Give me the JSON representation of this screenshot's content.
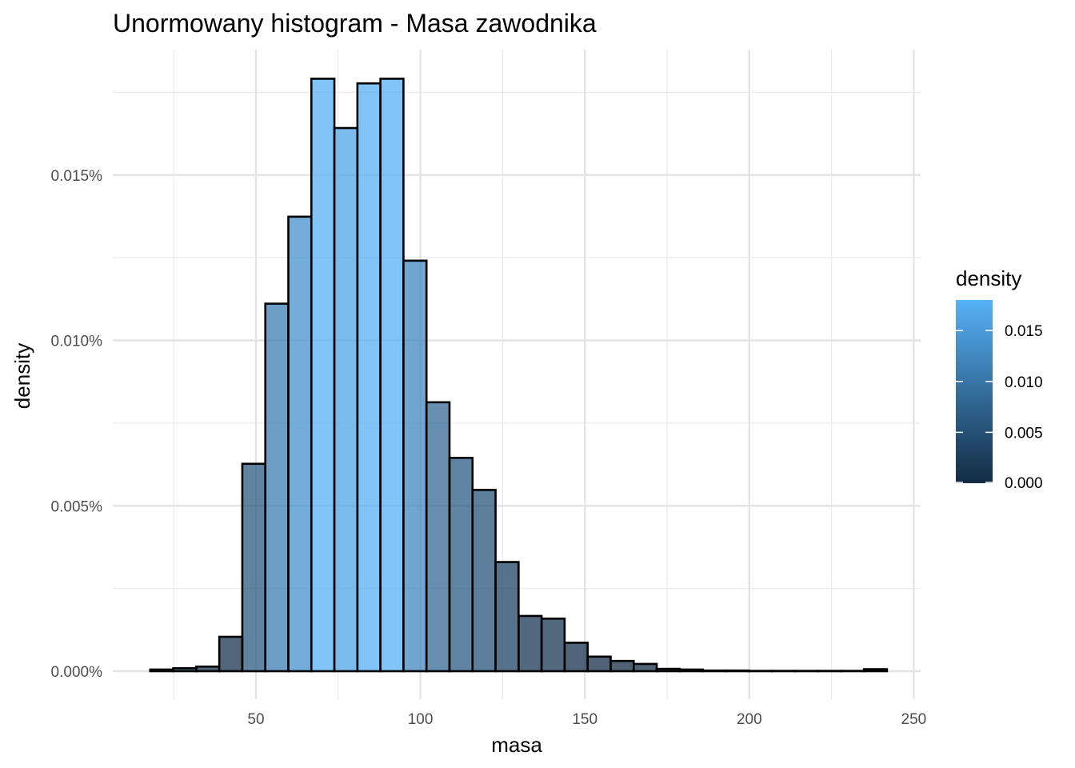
{
  "chart_data": {
    "type": "bar",
    "subtype": "histogram",
    "title": "Unormowany histogram - Masa zawodnika",
    "xlabel": "masa",
    "ylabel": "density",
    "xlim": [
      18,
      242
    ],
    "ylim": [
      0,
      0.018
    ],
    "x_ticks": [
      50,
      100,
      150,
      200,
      250
    ],
    "x_tick_labels": [
      "50",
      "100",
      "150",
      "200",
      "250"
    ],
    "y_ticks": [
      0,
      0.005,
      0.01,
      0.015
    ],
    "y_tick_labels": [
      "0.000%",
      "0.005%",
      "0.010%",
      "0.015%"
    ],
    "grid": true,
    "bin_edges": [
      17.85,
      24.85,
      31.85,
      38.85,
      45.85,
      52.85,
      59.85,
      66.85,
      73.85,
      80.85,
      87.85,
      94.85,
      101.85,
      108.85,
      115.85,
      122.85,
      129.85,
      136.85,
      143.85,
      150.85,
      157.85,
      164.85,
      171.85,
      178.85,
      185.85,
      192.85,
      199.85,
      206.85,
      213.85,
      220.85,
      227.85,
      234.85,
      241.85
    ],
    "values": [
      5e-05,
      9e-05,
      0.00014,
      0.00104,
      0.00627,
      0.01111,
      0.01374,
      0.01791,
      0.01642,
      0.01777,
      0.01791,
      0.01241,
      0.00813,
      0.00645,
      0.00548,
      0.0033,
      0.00167,
      0.00159,
      0.00086,
      0.00044,
      0.00031,
      0.00022,
      7e-05,
      5e-05,
      2e-05,
      2e-05,
      1e-05,
      1e-05,
      1e-05,
      1e-05,
      1e-05,
      6e-05
    ],
    "fill": {
      "mapped_to": "density",
      "scale_low_color": "#132b43",
      "scale_high_color": "#56b1f7",
      "scale_range": [
        0,
        0.018
      ],
      "opacity": 0.75
    },
    "bar_outline_color": "#000000",
    "legend": {
      "title": "density",
      "placement": "right",
      "ticks": [
        0,
        0.005,
        0.01,
        0.015
      ],
      "tick_labels": [
        "0.000",
        "0.005",
        "0.010",
        "0.015"
      ]
    }
  }
}
